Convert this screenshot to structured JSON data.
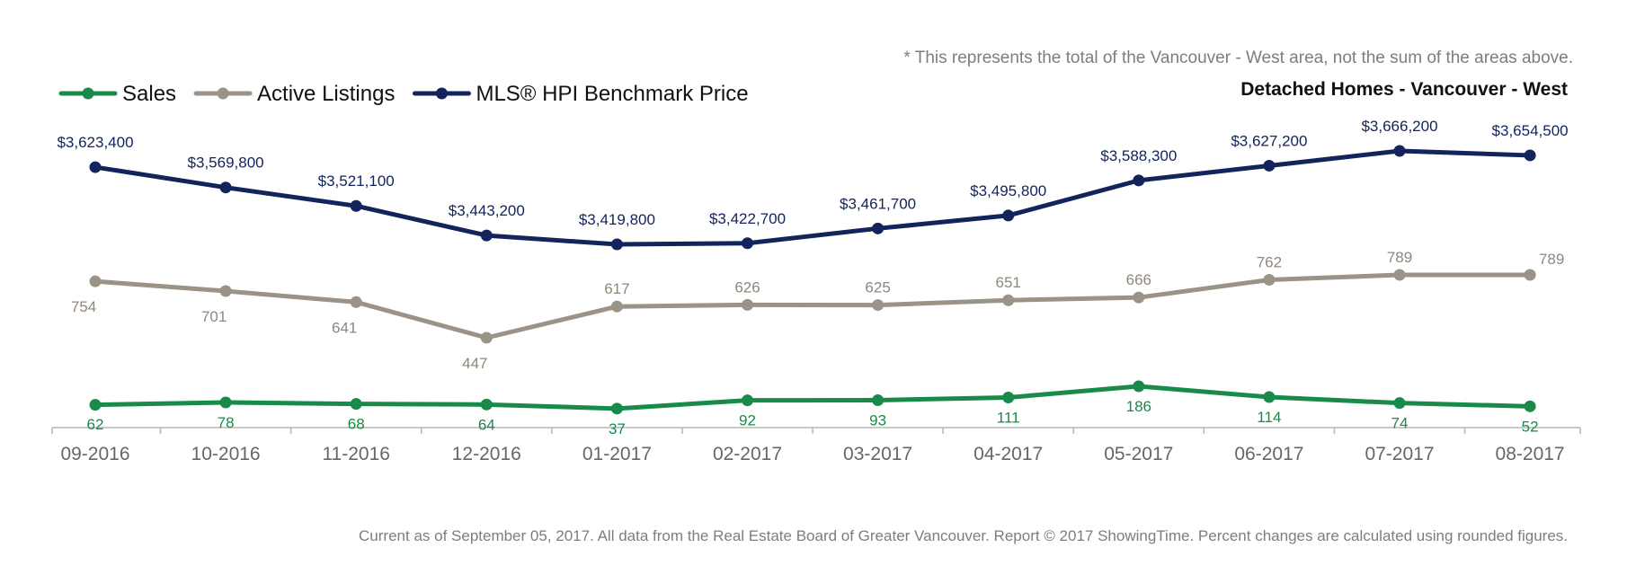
{
  "note": "* This represents the total of the Vancouver - West area, not the sum of the areas above.",
  "subtitle": "Detached Homes - Vancouver - West",
  "footer": "Current as of September 05, 2017. All data from the Real Estate Board of Greater Vancouver. Report © 2017 ShowingTime. Percent changes are calculated using rounded figures.",
  "chart_data": {
    "type": "line",
    "title": "",
    "xlabel": "",
    "ylabel": "",
    "grid": false,
    "legend_position": "top-left",
    "categories": [
      "09-2016",
      "10-2016",
      "11-2016",
      "12-2016",
      "01-2017",
      "02-2017",
      "03-2017",
      "04-2017",
      "05-2017",
      "06-2017",
      "07-2017",
      "08-2017"
    ],
    "series": [
      {
        "name": "Sales",
        "color": "#1a8a4a",
        "values": [
          62,
          78,
          68,
          64,
          37,
          92,
          93,
          111,
          186,
          114,
          74,
          52
        ],
        "labels": [
          "62",
          "78",
          "68",
          "64",
          "37",
          "92",
          "93",
          "111",
          "186",
          "114",
          "74",
          "52"
        ]
      },
      {
        "name": "Active Listings",
        "color": "#9b9388",
        "values": [
          754,
          701,
          641,
          447,
          617,
          626,
          625,
          651,
          666,
          762,
          789,
          789
        ],
        "labels": [
          "754",
          "701",
          "641",
          "447",
          "617",
          "626",
          "625",
          "651",
          "666",
          "762",
          "789",
          "789"
        ]
      },
      {
        "name": "MLS® HPI Benchmark Price",
        "color": "#13235b",
        "values": [
          3623400,
          3569800,
          3521100,
          3443200,
          3419800,
          3422700,
          3461700,
          3495800,
          3588300,
          3627200,
          3666200,
          3654500
        ],
        "labels": [
          "$3,623,400",
          "$3,569,800",
          "$3,521,100",
          "$3,443,200",
          "$3,419,800",
          "$3,422,700",
          "$3,461,700",
          "$3,495,800",
          "$3,588,300",
          "$3,627,200",
          "$3,666,200",
          "$3,654,500"
        ]
      }
    ]
  }
}
